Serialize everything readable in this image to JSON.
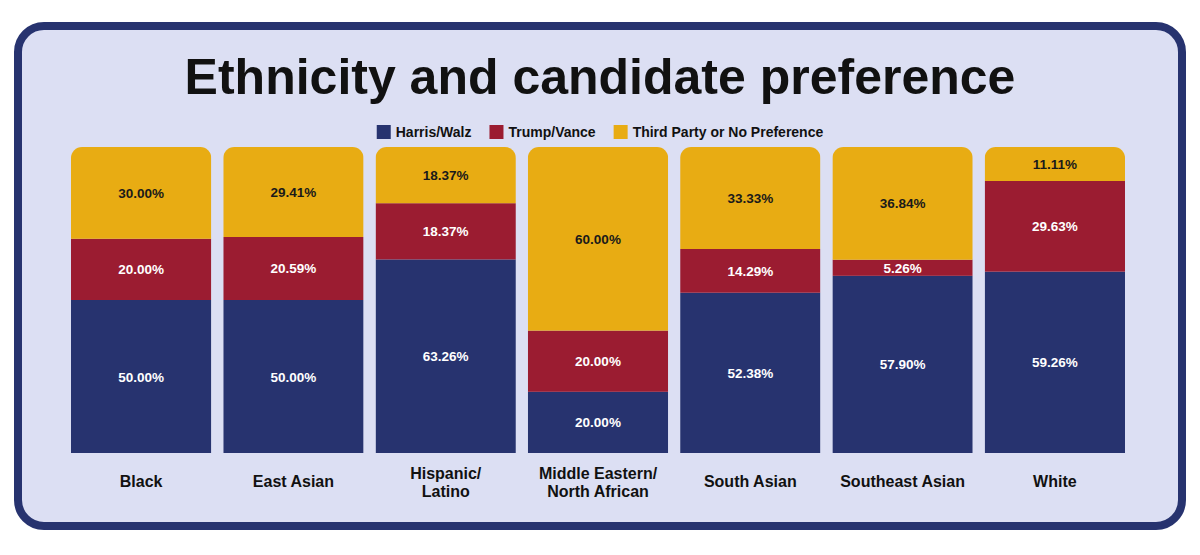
{
  "chart_data": {
    "type": "bar",
    "title": "Ethnicity and candidate preference",
    "stacked": true,
    "data_labels": true,
    "legend": "top",
    "tick_labels": "x",
    "ylim": [
      0,
      100
    ],
    "categories": [
      "Black",
      "East Asian",
      "Hispanic/Latino",
      "Middle Eastern/North African",
      "South Asian",
      "Southeast Asian",
      "White"
    ],
    "series": [
      {
        "name": "Harris/Walz",
        "color": "#27336f",
        "values": [
          50,
          50,
          63.26,
          20,
          52.38,
          57.9,
          59.26
        ],
        "value_labels": [
          "50.00%",
          "50.00%",
          "63.26%",
          "20.00%",
          "52.38%",
          "57.90%",
          "59.26%"
        ]
      },
      {
        "name": "Trump/Vance",
        "color": "#9b1c31",
        "values": [
          20,
          20.59,
          18.37,
          20,
          14.29,
          5.26,
          29.63
        ],
        "value_labels": [
          "20.00%",
          "20.59%",
          "18.37%",
          "20.00%",
          "14.29%",
          "5.26%",
          "29.63%"
        ]
      },
      {
        "name": "Third Party or No Preference",
        "color": "#e8ac13",
        "values": [
          30,
          29.41,
          18.37,
          60,
          33.33,
          36.84,
          11.11
        ],
        "value_labels": [
          "30.00%",
          "29.41%",
          "18.37%",
          "60.00%",
          "33.33%",
          "36.84%",
          "11.11%"
        ]
      }
    ]
  }
}
